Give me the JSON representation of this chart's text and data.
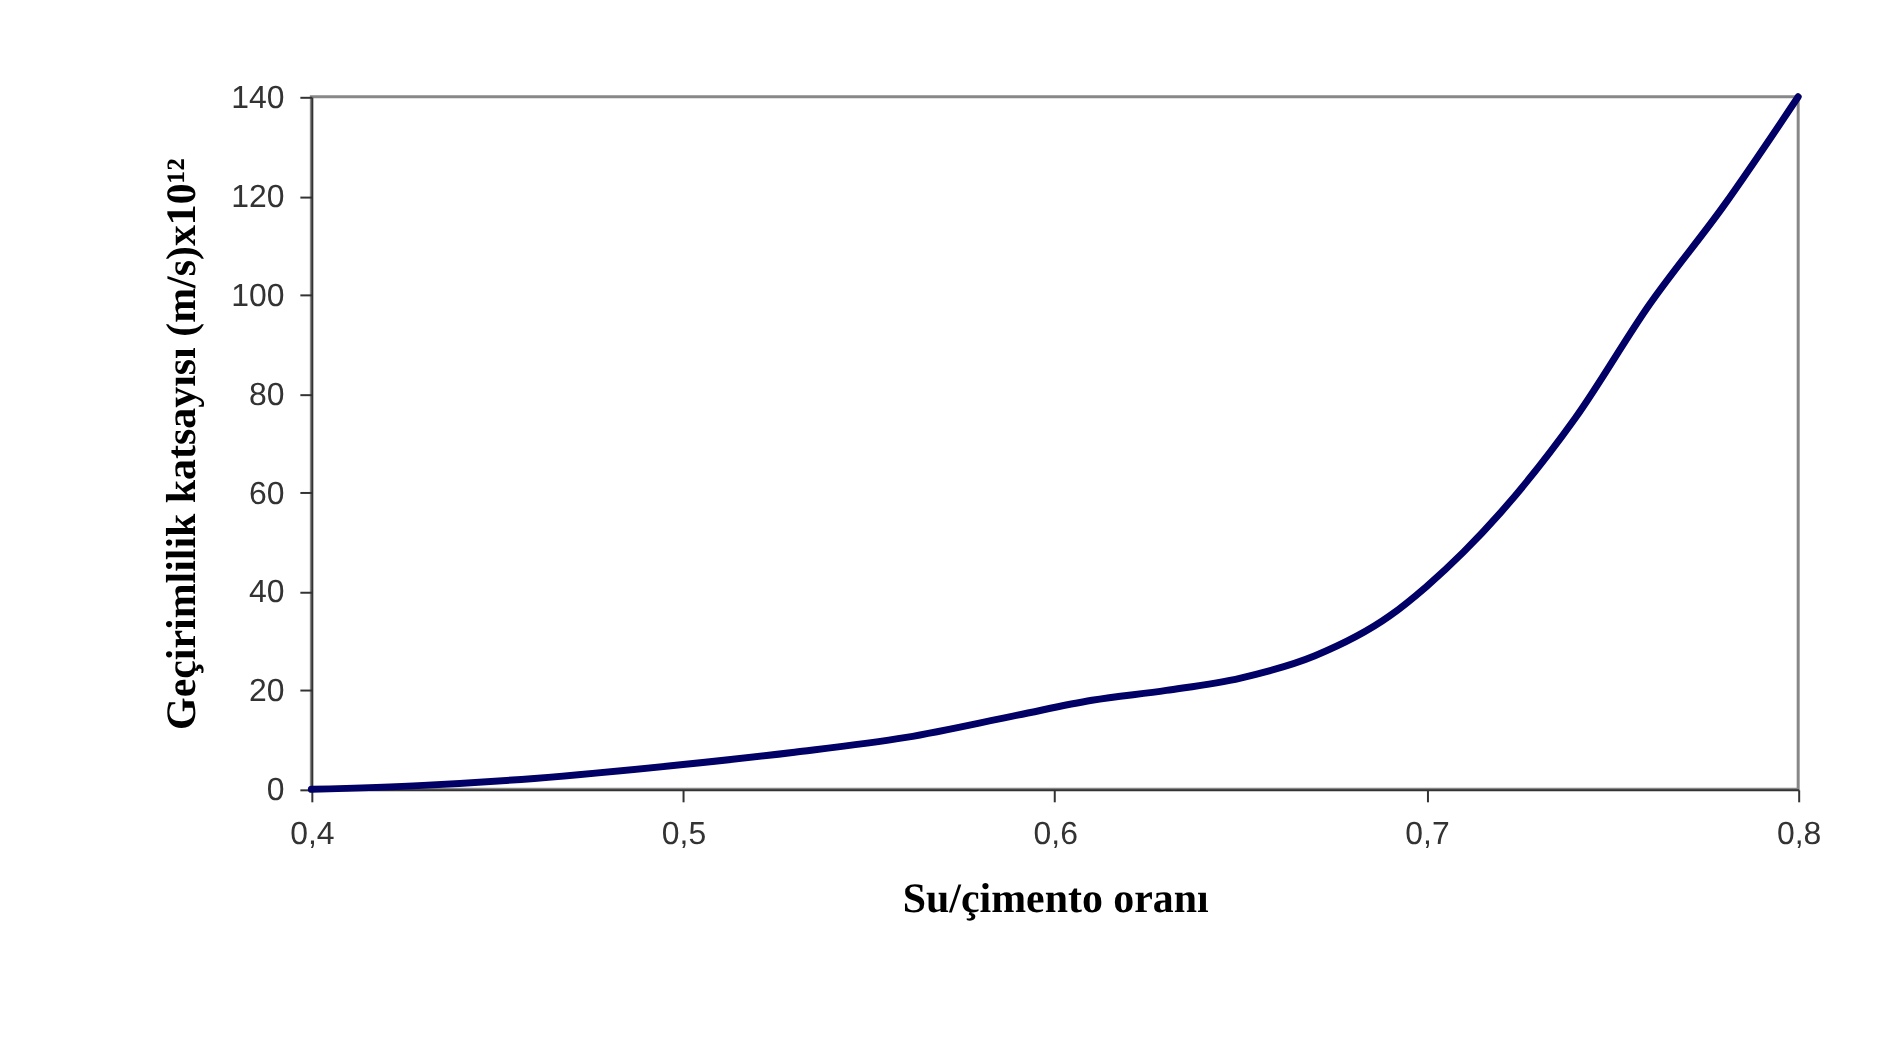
{
  "chart_data": {
    "type": "line",
    "xlabel": "Su/çimento oranı",
    "ylabel": "Geçirimlilik katsayısı (m/s)x10¹²",
    "x": [
      0.4,
      0.43,
      0.46,
      0.5,
      0.53,
      0.56,
      0.59,
      0.61,
      0.63,
      0.65,
      0.67,
      0.69,
      0.7,
      0.71,
      0.72,
      0.74,
      0.76,
      0.78,
      0.8
    ],
    "series": [
      {
        "color": "#000066",
        "values": [
          0,
          0.8,
          2.2,
          5,
          7.5,
          10.5,
          15,
          18,
          20,
          22.5,
          27,
          35,
          41,
          48,
          56,
          75,
          98,
          118,
          140
        ]
      }
    ],
    "xlim": [
      0.4,
      0.8
    ],
    "ylim": [
      0,
      140
    ],
    "xticks": [
      {
        "value": 0.4,
        "label": "0,4"
      },
      {
        "value": 0.5,
        "label": "0,5"
      },
      {
        "value": 0.6,
        "label": "0,6"
      },
      {
        "value": 0.7,
        "label": "0,7"
      },
      {
        "value": 0.8,
        "label": "0,8"
      }
    ],
    "yticks": [
      0,
      20,
      40,
      60,
      80,
      100,
      120,
      140
    ],
    "grid": false,
    "marker": "none",
    "line_style": "solid"
  }
}
